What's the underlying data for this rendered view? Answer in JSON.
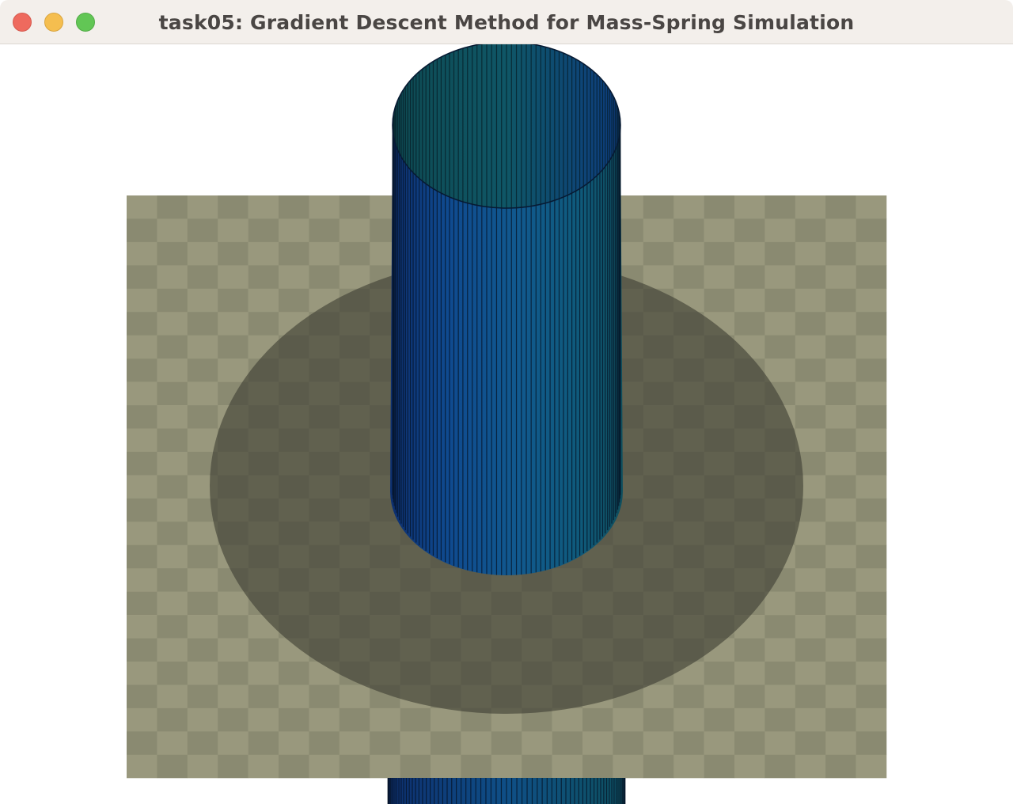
{
  "window": {
    "title": "task05: Gradient Descent Method for Mass-Spring Simulation",
    "controls": {
      "close": "close-icon",
      "minimize": "minimize-icon",
      "zoom": "zoom-icon"
    }
  },
  "scene": {
    "floor": {
      "color_light": "#99987d",
      "color_dark": "#8a8a71"
    },
    "shadow": {
      "color": "#4a4a3f"
    },
    "cloth_cylinder": {
      "color_blue": "#0f3f8e",
      "color_teal": "#0f5f6a",
      "color_mid": "#11588c"
    }
  }
}
